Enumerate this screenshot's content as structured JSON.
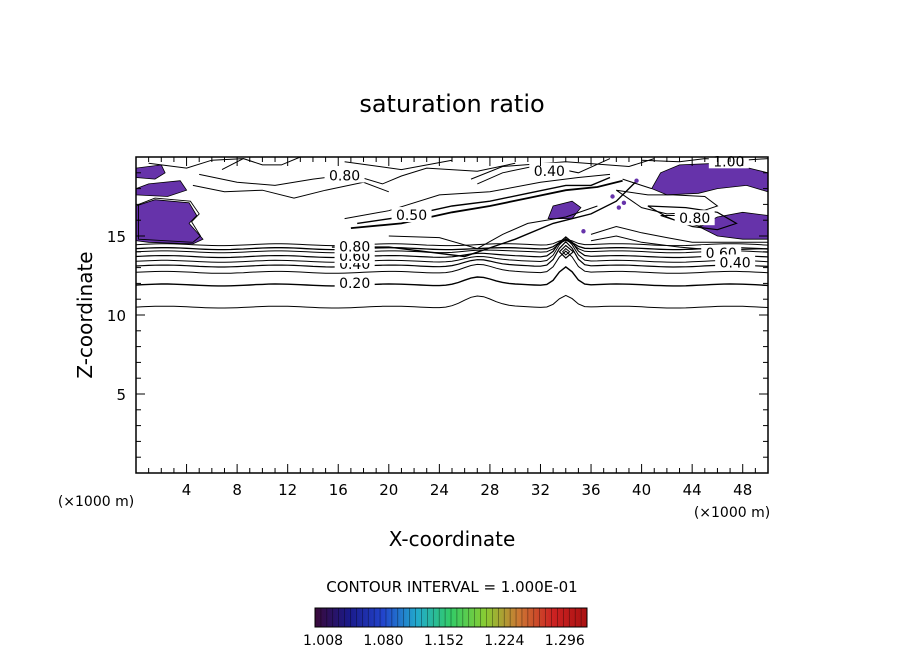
{
  "chart_data": {
    "type": "contour",
    "title": "saturation ratio",
    "xlabel": "X-coordinate",
    "ylabel": "Z-coordinate",
    "x_unit": "(×1000 m)",
    "z_unit": "(×1000 m)",
    "xlim": [
      0,
      50
    ],
    "ylim": [
      0,
      20
    ],
    "x_ticks": [
      4,
      8,
      12,
      16,
      20,
      24,
      28,
      32,
      36,
      40,
      44,
      48
    ],
    "x_tick_labels": [
      "4",
      "8",
      "12",
      "16",
      "20",
      "24",
      "28",
      "32",
      "36",
      "40",
      "44",
      "48"
    ],
    "y_ticks": [
      5,
      10,
      15
    ],
    "y_tick_labels": [
      "5",
      "10",
      "15"
    ],
    "contour_interval_text": "CONTOUR INTERVAL = 1.000E-01",
    "colorbar": {
      "range": [
        1.008,
        1.332
      ],
      "tick_labels": [
        "1.008",
        "1.080",
        "1.152",
        "1.224",
        "1.296"
      ],
      "colors": [
        "#3a0a3a",
        "#1a1a8a",
        "#2244cc",
        "#22aacc",
        "#33cc66",
        "#88cc33",
        "#cc7733",
        "#cc2222",
        "#aa1111"
      ]
    },
    "contour_labels": [
      {
        "text": "0.20",
        "x": 17.3,
        "z": 11.9
      },
      {
        "text": "0.40",
        "x": 17.3,
        "z": 13.1
      },
      {
        "text": "0.60",
        "x": 17.3,
        "z": 13.6
      },
      {
        "text": "0.80",
        "x": 17.3,
        "z": 14.2
      },
      {
        "text": "0.80",
        "x": 16.5,
        "z": 18.7
      },
      {
        "text": "0.50",
        "x": 21.8,
        "z": 16.2
      },
      {
        "text": "0.40",
        "x": 32.7,
        "z": 19.0
      },
      {
        "text": "1.00",
        "x": 46.9,
        "z": 19.6
      },
      {
        "text": "0.80",
        "x": 44.2,
        "z": 16.0
      },
      {
        "text": "0.60",
        "x": 46.3,
        "z": 13.8
      },
      {
        "text": "0.40",
        "x": 47.4,
        "z": 13.2
      }
    ],
    "supersaturated_region_color": "#6633aa"
  }
}
